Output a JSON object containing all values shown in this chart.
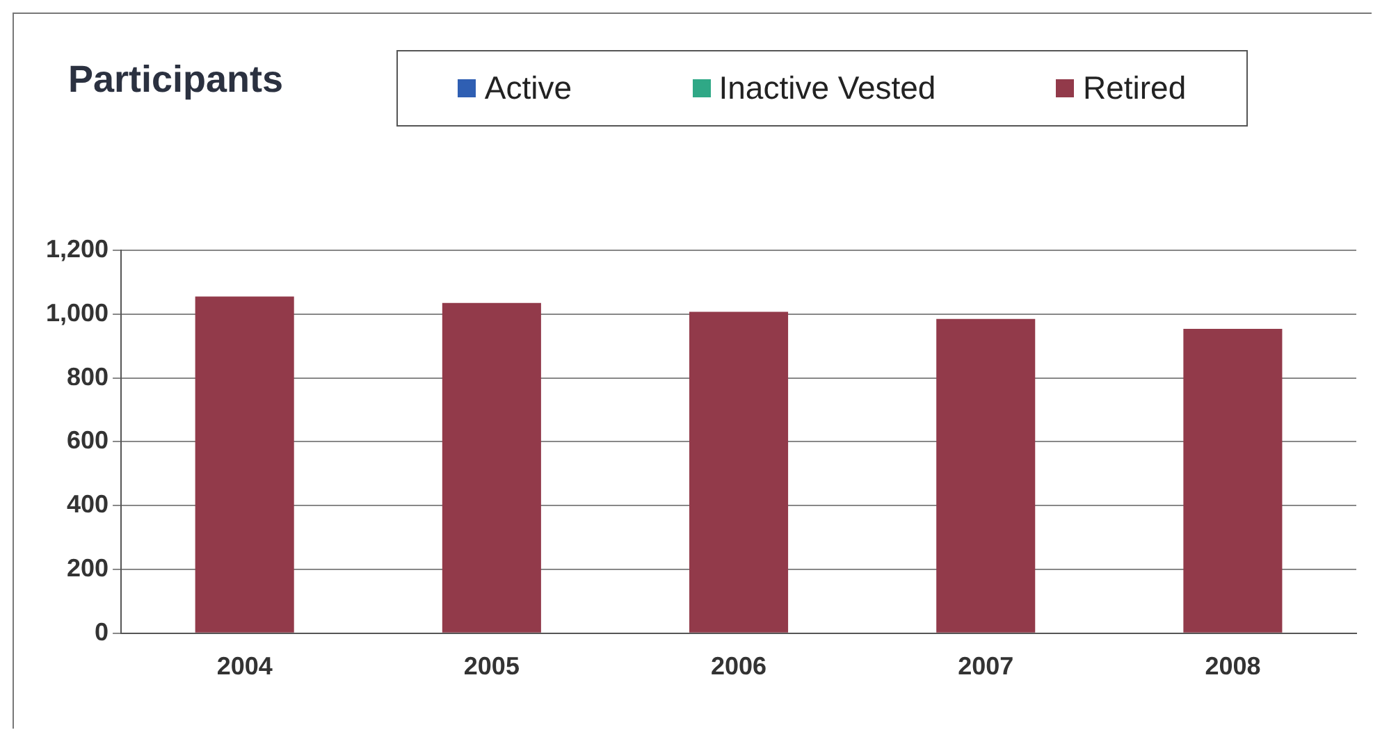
{
  "chart_data": {
    "type": "bar",
    "title": "Participants",
    "stacked": true,
    "categories": [
      "2004",
      "2005",
      "2006",
      "2007",
      "2008"
    ],
    "series": [
      {
        "name": "Active",
        "color": "#2f5fb3",
        "values": [
          0,
          0,
          0,
          0,
          0
        ]
      },
      {
        "name": "Inactive Vested",
        "color": "#2fa886",
        "values": [
          0,
          0,
          0,
          0,
          0
        ]
      },
      {
        "name": "Retired",
        "color": "#923a4a",
        "values": [
          1055,
          1035,
          1007,
          985,
          954
        ]
      }
    ],
    "ylim": [
      0,
      1200
    ],
    "yticks": [
      0,
      200,
      400,
      600,
      800,
      {
        "value": 1000,
        "label": "1,000"
      },
      {
        "value": 1200,
        "label": "1,200"
      }
    ],
    "grid": "y",
    "legend": "top"
  }
}
